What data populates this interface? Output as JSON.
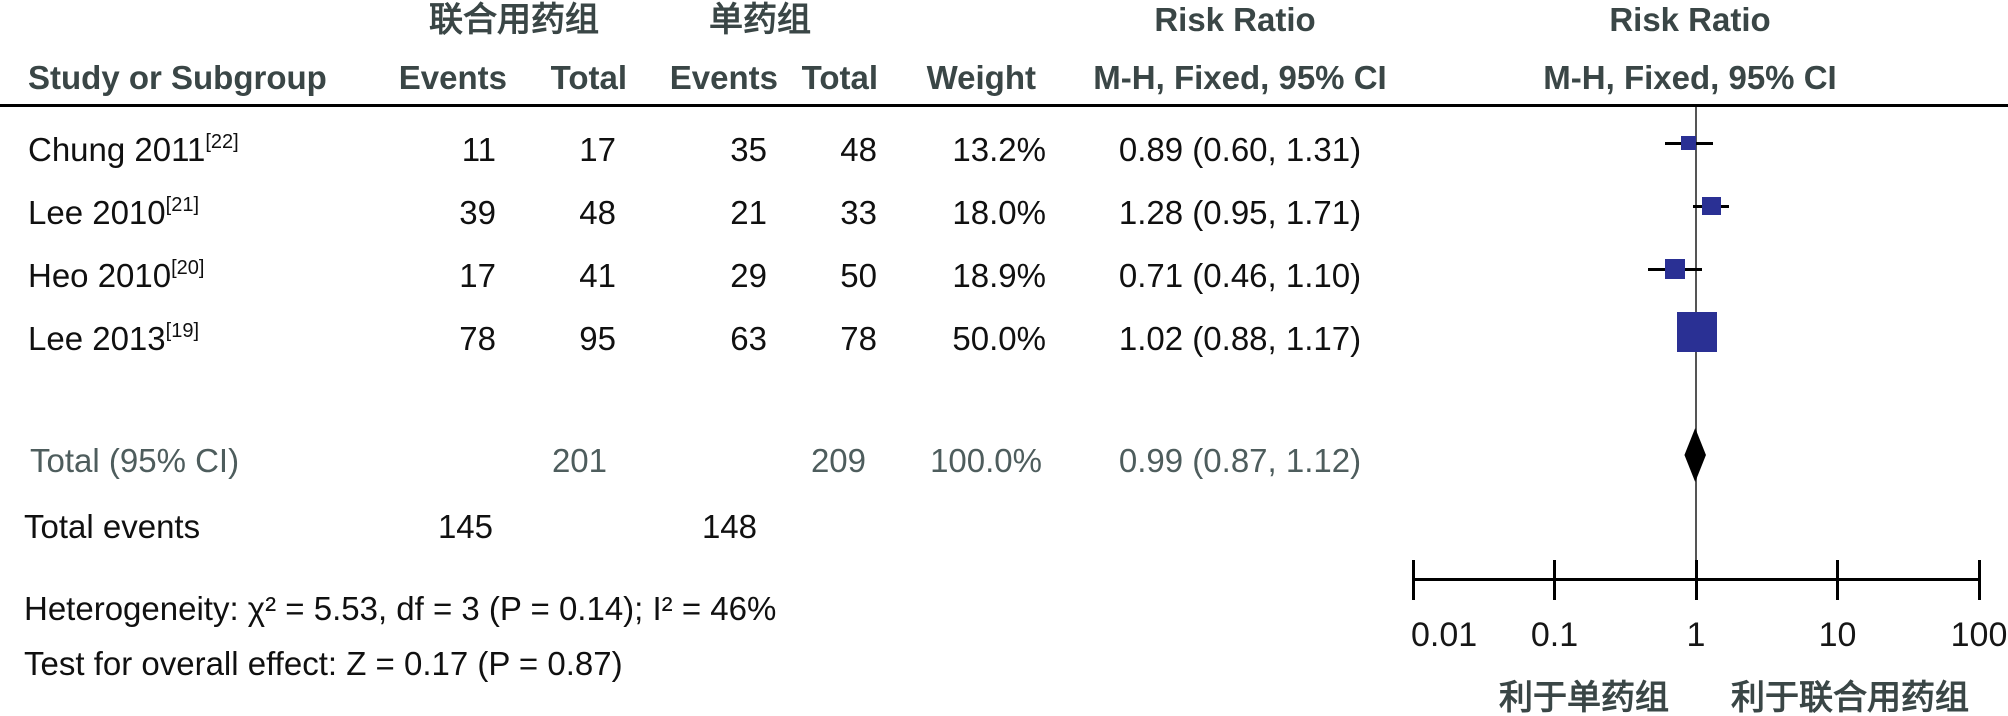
{
  "table": {
    "group1_header": "联合用药组",
    "group2_header": "单药组",
    "risk_ratio_header_text_col": "Risk Ratio",
    "risk_ratio_header_plot_col": "Risk Ratio",
    "study_col_header": "Study or Subgroup",
    "events1_col_header": "Events",
    "total1_col_header": "Total",
    "events2_col_header": "Events",
    "total2_col_header": "Total",
    "weight_col_header": "Weight",
    "mh_text_col_header": "M-H, Fixed, 95% CI",
    "mh_plot_col_header": "M-H, Fixed, 95% CI"
  },
  "chart_data": {
    "type": "forest",
    "effect_measure": "Risk Ratio",
    "method": "M-H, Fixed, 95% CI",
    "x_axis": {
      "scale": "log",
      "ticks": [
        0.01,
        0.1,
        1,
        10,
        100
      ],
      "tick_labels": [
        "0.01",
        "0.1",
        "1",
        "10",
        "100"
      ]
    },
    "studies": [
      {
        "name": "Chung 2011",
        "ref": "[22]",
        "events_exp": "11",
        "total_exp": "17",
        "events_ctrl": "35",
        "total_ctrl": "48",
        "weight": "13.2%",
        "weight_value": 13.2,
        "rr": 0.89,
        "ci_low": 0.6,
        "ci_high": 1.31,
        "rr_text": "0.89 (0.60, 1.31)"
      },
      {
        "name": "Lee 2010",
        "ref": "[21]",
        "events_exp": "39",
        "total_exp": "48",
        "events_ctrl": "21",
        "total_ctrl": "33",
        "weight": "18.0%",
        "weight_value": 18.0,
        "rr": 1.28,
        "ci_low": 0.95,
        "ci_high": 1.71,
        "rr_text": "1.28 (0.95, 1.71)"
      },
      {
        "name": "Heo 2010",
        "ref": "[20]",
        "events_exp": "17",
        "total_exp": "41",
        "events_ctrl": "29",
        "total_ctrl": "50",
        "weight": "18.9%",
        "weight_value": 18.9,
        "rr": 0.71,
        "ci_low": 0.46,
        "ci_high": 1.1,
        "rr_text": "0.71 (0.46, 1.10)"
      },
      {
        "name": "Lee 2013",
        "ref": "[19]",
        "events_exp": "78",
        "total_exp": "95",
        "events_ctrl": "63",
        "total_ctrl": "78",
        "weight": "50.0%",
        "weight_value": 50.0,
        "rr": 1.02,
        "ci_low": 0.88,
        "ci_high": 1.17,
        "rr_text": "1.02 (0.88, 1.17)"
      }
    ],
    "total": {
      "label": "Total (95% CI)",
      "total_exp": "201",
      "total_ctrl": "209",
      "weight": "100.0%",
      "rr": 0.99,
      "ci_low": 0.87,
      "ci_high": 1.12,
      "rr_text": "0.99 (0.87, 1.12)"
    },
    "total_events": {
      "label": "Total events",
      "events_exp": "145",
      "events_ctrl": "148"
    },
    "heterogeneity": "Heterogeneity: χ² = 5.53, df = 3 (P = 0.14); I² = 46%",
    "overall_effect": "Test for overall effect: Z = 0.17 (P = 0.87)",
    "favors_left": "利于单药组",
    "favors_right": "利于联合用药组",
    "colors": {
      "square": "#2a3094",
      "diamond": "#000000"
    }
  }
}
